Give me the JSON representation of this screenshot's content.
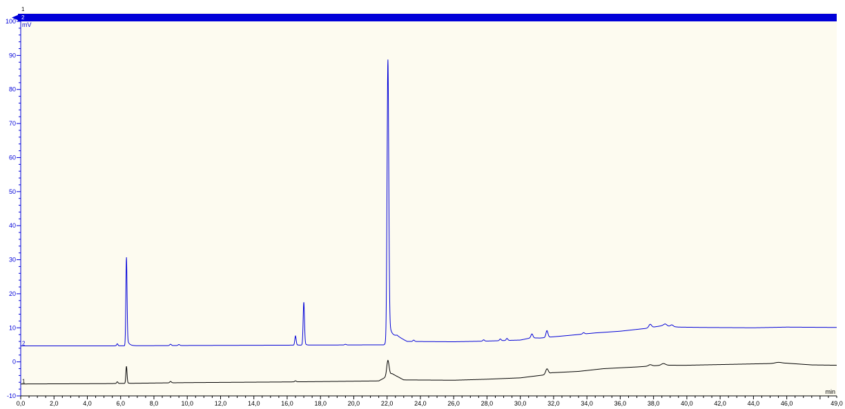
{
  "chart_data": {
    "type": "line",
    "title": "",
    "xlabel": "",
    "ylabel": "",
    "x_unit": "min",
    "y_unit": "mV",
    "xlim": [
      0.0,
      49.0
    ],
    "ylim": [
      -10,
      100
    ],
    "x_ticks": [
      0.0,
      2.0,
      4.0,
      6.0,
      8.0,
      10.0,
      12.0,
      14.0,
      16.0,
      18.0,
      20.0,
      22.0,
      24.0,
      26.0,
      28.0,
      30.0,
      32.0,
      34.0,
      36.0,
      38.0,
      40.0,
      42.0,
      44.0,
      46.0,
      49.0
    ],
    "x_tick_labels": [
      "0,0",
      "2,0",
      "4,0",
      "6,0",
      "8,0",
      "10,0",
      "12,0",
      "14,0",
      "16,0",
      "18,0",
      "20,0",
      "22,0",
      "24,0",
      "26,0",
      "28,0",
      "30,0",
      "32,0",
      "34,0",
      "36,0",
      "38,0",
      "40,0",
      "42,0",
      "44,0",
      "46,0",
      "49,0"
    ],
    "y_ticks": [
      -10,
      0,
      10,
      20,
      30,
      40,
      50,
      60,
      70,
      80,
      90,
      100
    ],
    "y_tick_labels": [
      "-10",
      "0",
      "10",
      "20",
      "30",
      "40",
      "50",
      "60",
      "70",
      "80",
      "90",
      "100"
    ],
    "grid": false,
    "legend": "none",
    "trace_markers": {
      "top_left": [
        "1",
        "2"
      ],
      "bottom": [
        "2",
        "1"
      ]
    },
    "colors": {
      "trace_1": "#000000",
      "trace_2": "#0000d8",
      "axis": "#0000d8",
      "x_axis": "#000000",
      "plot_background": "#fdfbf0"
    },
    "series": [
      {
        "id": "1",
        "baseline": [
          [
            0.0,
            -6.5
          ],
          [
            5.0,
            -6.4
          ],
          [
            10.0,
            -6.1
          ],
          [
            16.0,
            -5.9
          ],
          [
            21.5,
            -5.6
          ],
          [
            22.3,
            -3.5
          ],
          [
            23.0,
            -5.3
          ],
          [
            26.0,
            -5.4
          ],
          [
            28.0,
            -5.1
          ],
          [
            30.0,
            -4.7
          ],
          [
            31.5,
            -3.8
          ],
          [
            31.9,
            -3.2
          ],
          [
            33.5,
            -2.8
          ],
          [
            35.0,
            -2.0
          ],
          [
            37.0,
            -1.5
          ],
          [
            38.5,
            -1.0
          ],
          [
            40.0,
            -1.0
          ],
          [
            42.0,
            -0.8
          ],
          [
            44.0,
            -0.6
          ],
          [
            46.0,
            -0.4
          ],
          [
            47.5,
            -0.9
          ],
          [
            49.0,
            -1.0
          ]
        ],
        "peaks": [
          {
            "rt": 5.8,
            "height": 0.5,
            "width": 0.04
          },
          {
            "rt": 6.35,
            "height": 5.0,
            "width": 0.035
          },
          {
            "rt": 9.0,
            "height": 0.4,
            "width": 0.05
          },
          {
            "rt": 16.5,
            "height": 0.3,
            "width": 0.05
          },
          {
            "rt": 22.05,
            "height": 4.6,
            "width": 0.07
          },
          {
            "rt": 31.6,
            "height": 1.6,
            "width": 0.08
          },
          {
            "rt": 37.8,
            "height": 0.4,
            "width": 0.1
          },
          {
            "rt": 38.6,
            "height": 0.5,
            "width": 0.12
          },
          {
            "rt": 45.5,
            "height": 0.3,
            "width": 0.2
          }
        ]
      },
      {
        "id": "2",
        "baseline": [
          [
            0.0,
            4.7
          ],
          [
            6.0,
            4.7
          ],
          [
            10.0,
            4.8
          ],
          [
            16.0,
            4.9
          ],
          [
            21.8,
            5.0
          ],
          [
            22.6,
            7.5
          ],
          [
            23.2,
            6.0
          ],
          [
            26.0,
            5.9
          ],
          [
            28.0,
            6.1
          ],
          [
            30.0,
            6.4
          ],
          [
            30.6,
            7.0
          ],
          [
            31.2,
            7.0
          ],
          [
            33.0,
            7.8
          ],
          [
            34.5,
            8.5
          ],
          [
            36.0,
            9.0
          ],
          [
            37.5,
            9.8
          ],
          [
            38.5,
            10.6
          ],
          [
            39.5,
            10.2
          ],
          [
            41.0,
            10.1
          ],
          [
            44.0,
            10.0
          ],
          [
            46.0,
            10.2
          ],
          [
            49.0,
            10.1
          ]
        ],
        "peaks": [
          {
            "rt": 5.8,
            "height": 0.6,
            "width": 0.04
          },
          {
            "rt": 6.35,
            "height": 26.0,
            "width": 0.035
          },
          {
            "rt": 9.0,
            "height": 0.4,
            "width": 0.05
          },
          {
            "rt": 9.5,
            "height": 0.3,
            "width": 0.05
          },
          {
            "rt": 16.5,
            "height": 2.7,
            "width": 0.04
          },
          {
            "rt": 17.0,
            "height": 12.6,
            "width": 0.04
          },
          {
            "rt": 19.5,
            "height": 0.2,
            "width": 0.05
          },
          {
            "rt": 22.05,
            "height": 83.0,
            "width": 0.05
          },
          {
            "rt": 23.6,
            "height": 0.4,
            "width": 0.05
          },
          {
            "rt": 27.8,
            "height": 0.4,
            "width": 0.05
          },
          {
            "rt": 28.8,
            "height": 0.5,
            "width": 0.05
          },
          {
            "rt": 29.2,
            "height": 0.6,
            "width": 0.05
          },
          {
            "rt": 30.7,
            "height": 1.2,
            "width": 0.06
          },
          {
            "rt": 31.6,
            "height": 2.0,
            "width": 0.06
          },
          {
            "rt": 33.8,
            "height": 0.4,
            "width": 0.06
          },
          {
            "rt": 37.8,
            "height": 1.0,
            "width": 0.08
          },
          {
            "rt": 38.7,
            "height": 0.6,
            "width": 0.1
          },
          {
            "rt": 39.1,
            "height": 0.5,
            "width": 0.08
          }
        ]
      }
    ]
  }
}
